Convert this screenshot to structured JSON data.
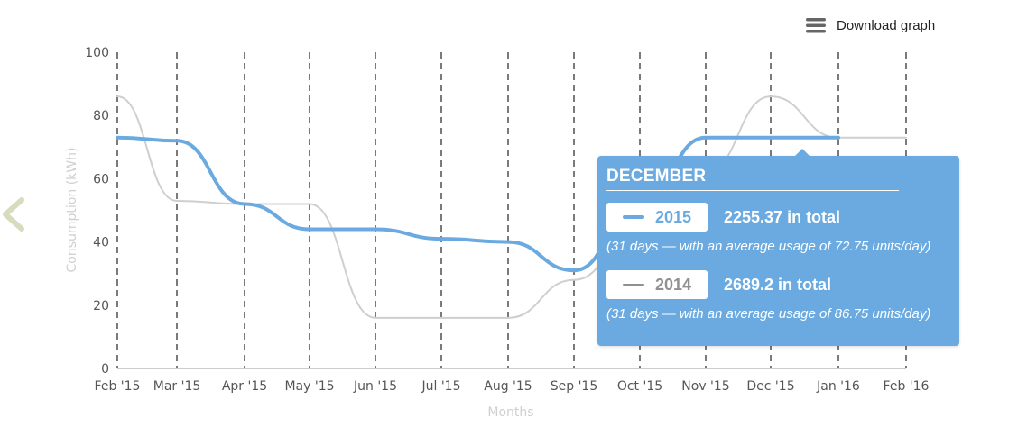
{
  "toolbar": {
    "download_label": "Download graph",
    "download_icon": "hamburger-menu-icon"
  },
  "nav": {
    "back_icon": "chevron-left-icon",
    "back_color": "#d8dcbf"
  },
  "chart_data": {
    "type": "line",
    "xlabel": "Months",
    "ylabel": "Consumption (kWh)",
    "ylim": [
      0,
      100
    ],
    "yticks": [
      0,
      20,
      40,
      60,
      80,
      100
    ],
    "categories": [
      "Feb '15",
      "Mar '15",
      "Apr '15",
      "May '15",
      "Jun '15",
      "Jul '15",
      "Aug '15",
      "Sep '15",
      "Oct '15",
      "Nov '15",
      "Dec '15",
      "Jan '16",
      "Feb '16"
    ],
    "grid": "vertical dashed",
    "series": [
      {
        "name": "2014",
        "color": "#cfcfcf",
        "values": [
          86,
          53,
          52,
          52,
          16,
          16,
          16,
          28,
          45,
          62,
          86,
          73,
          73
        ]
      },
      {
        "name": "2015",
        "color": "#6aaae0",
        "values": [
          73,
          72,
          52,
          44,
          44,
          41,
          40,
          31,
          52,
          73,
          73,
          73,
          null
        ]
      }
    ]
  },
  "tooltip": {
    "title": "DECEMBER",
    "rows": [
      {
        "year": "2015",
        "total": "2255.37 in total",
        "note": "(31 days — with an average usage of 72.75 units/day)",
        "color": "#6aaae0"
      },
      {
        "year": "2014",
        "total": "2689.2 in total",
        "note": "(31 days — with an average usage of 86.75 units/day)",
        "color": "#909090"
      }
    ]
  }
}
